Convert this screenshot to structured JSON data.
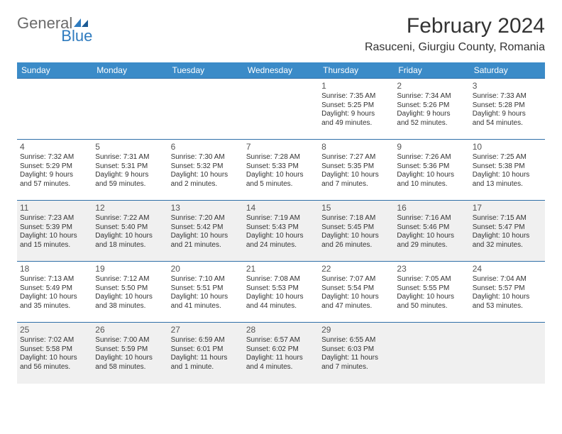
{
  "logo": {
    "general": "General",
    "blue": "Blue"
  },
  "title": "February 2024",
  "location": "Rasuceni, Giurgiu County, Romania",
  "colors": {
    "header_bg": "#3b8bc8",
    "header_text": "#ffffff",
    "border": "#2f6fa8",
    "shade": "#f0f0f0",
    "logo_gray": "#6b6b6b",
    "logo_blue": "#2f7bbf"
  },
  "weekdays": [
    "Sunday",
    "Monday",
    "Tuesday",
    "Wednesday",
    "Thursday",
    "Friday",
    "Saturday"
  ],
  "weeks": [
    [
      null,
      null,
      null,
      null,
      {
        "n": "1",
        "sr": "Sunrise: 7:35 AM",
        "ss": "Sunset: 5:25 PM",
        "dl1": "Daylight: 9 hours",
        "dl2": "and 49 minutes."
      },
      {
        "n": "2",
        "sr": "Sunrise: 7:34 AM",
        "ss": "Sunset: 5:26 PM",
        "dl1": "Daylight: 9 hours",
        "dl2": "and 52 minutes."
      },
      {
        "n": "3",
        "sr": "Sunrise: 7:33 AM",
        "ss": "Sunset: 5:28 PM",
        "dl1": "Daylight: 9 hours",
        "dl2": "and 54 minutes."
      }
    ],
    [
      {
        "n": "4",
        "sr": "Sunrise: 7:32 AM",
        "ss": "Sunset: 5:29 PM",
        "dl1": "Daylight: 9 hours",
        "dl2": "and 57 minutes."
      },
      {
        "n": "5",
        "sr": "Sunrise: 7:31 AM",
        "ss": "Sunset: 5:31 PM",
        "dl1": "Daylight: 9 hours",
        "dl2": "and 59 minutes."
      },
      {
        "n": "6",
        "sr": "Sunrise: 7:30 AM",
        "ss": "Sunset: 5:32 PM",
        "dl1": "Daylight: 10 hours",
        "dl2": "and 2 minutes."
      },
      {
        "n": "7",
        "sr": "Sunrise: 7:28 AM",
        "ss": "Sunset: 5:33 PM",
        "dl1": "Daylight: 10 hours",
        "dl2": "and 5 minutes."
      },
      {
        "n": "8",
        "sr": "Sunrise: 7:27 AM",
        "ss": "Sunset: 5:35 PM",
        "dl1": "Daylight: 10 hours",
        "dl2": "and 7 minutes."
      },
      {
        "n": "9",
        "sr": "Sunrise: 7:26 AM",
        "ss": "Sunset: 5:36 PM",
        "dl1": "Daylight: 10 hours",
        "dl2": "and 10 minutes."
      },
      {
        "n": "10",
        "sr": "Sunrise: 7:25 AM",
        "ss": "Sunset: 5:38 PM",
        "dl1": "Daylight: 10 hours",
        "dl2": "and 13 minutes."
      }
    ],
    [
      {
        "n": "11",
        "sr": "Sunrise: 7:23 AM",
        "ss": "Sunset: 5:39 PM",
        "dl1": "Daylight: 10 hours",
        "dl2": "and 15 minutes.",
        "shade": true
      },
      {
        "n": "12",
        "sr": "Sunrise: 7:22 AM",
        "ss": "Sunset: 5:40 PM",
        "dl1": "Daylight: 10 hours",
        "dl2": "and 18 minutes.",
        "shade": true
      },
      {
        "n": "13",
        "sr": "Sunrise: 7:20 AM",
        "ss": "Sunset: 5:42 PM",
        "dl1": "Daylight: 10 hours",
        "dl2": "and 21 minutes.",
        "shade": true
      },
      {
        "n": "14",
        "sr": "Sunrise: 7:19 AM",
        "ss": "Sunset: 5:43 PM",
        "dl1": "Daylight: 10 hours",
        "dl2": "and 24 minutes.",
        "shade": true
      },
      {
        "n": "15",
        "sr": "Sunrise: 7:18 AM",
        "ss": "Sunset: 5:45 PM",
        "dl1": "Daylight: 10 hours",
        "dl2": "and 26 minutes.",
        "shade": true
      },
      {
        "n": "16",
        "sr": "Sunrise: 7:16 AM",
        "ss": "Sunset: 5:46 PM",
        "dl1": "Daylight: 10 hours",
        "dl2": "and 29 minutes.",
        "shade": true
      },
      {
        "n": "17",
        "sr": "Sunrise: 7:15 AM",
        "ss": "Sunset: 5:47 PM",
        "dl1": "Daylight: 10 hours",
        "dl2": "and 32 minutes.",
        "shade": true
      }
    ],
    [
      {
        "n": "18",
        "sr": "Sunrise: 7:13 AM",
        "ss": "Sunset: 5:49 PM",
        "dl1": "Daylight: 10 hours",
        "dl2": "and 35 minutes."
      },
      {
        "n": "19",
        "sr": "Sunrise: 7:12 AM",
        "ss": "Sunset: 5:50 PM",
        "dl1": "Daylight: 10 hours",
        "dl2": "and 38 minutes."
      },
      {
        "n": "20",
        "sr": "Sunrise: 7:10 AM",
        "ss": "Sunset: 5:51 PM",
        "dl1": "Daylight: 10 hours",
        "dl2": "and 41 minutes."
      },
      {
        "n": "21",
        "sr": "Sunrise: 7:08 AM",
        "ss": "Sunset: 5:53 PM",
        "dl1": "Daylight: 10 hours",
        "dl2": "and 44 minutes."
      },
      {
        "n": "22",
        "sr": "Sunrise: 7:07 AM",
        "ss": "Sunset: 5:54 PM",
        "dl1": "Daylight: 10 hours",
        "dl2": "and 47 minutes."
      },
      {
        "n": "23",
        "sr": "Sunrise: 7:05 AM",
        "ss": "Sunset: 5:55 PM",
        "dl1": "Daylight: 10 hours",
        "dl2": "and 50 minutes."
      },
      {
        "n": "24",
        "sr": "Sunrise: 7:04 AM",
        "ss": "Sunset: 5:57 PM",
        "dl1": "Daylight: 10 hours",
        "dl2": "and 53 minutes."
      }
    ],
    [
      {
        "n": "25",
        "sr": "Sunrise: 7:02 AM",
        "ss": "Sunset: 5:58 PM",
        "dl1": "Daylight: 10 hours",
        "dl2": "and 56 minutes.",
        "shade": true
      },
      {
        "n": "26",
        "sr": "Sunrise: 7:00 AM",
        "ss": "Sunset: 5:59 PM",
        "dl1": "Daylight: 10 hours",
        "dl2": "and 58 minutes.",
        "shade": true
      },
      {
        "n": "27",
        "sr": "Sunrise: 6:59 AM",
        "ss": "Sunset: 6:01 PM",
        "dl1": "Daylight: 11 hours",
        "dl2": "and 1 minute.",
        "shade": true
      },
      {
        "n": "28",
        "sr": "Sunrise: 6:57 AM",
        "ss": "Sunset: 6:02 PM",
        "dl1": "Daylight: 11 hours",
        "dl2": "and 4 minutes.",
        "shade": true
      },
      {
        "n": "29",
        "sr": "Sunrise: 6:55 AM",
        "ss": "Sunset: 6:03 PM",
        "dl1": "Daylight: 11 hours",
        "dl2": "and 7 minutes.",
        "shade": true
      },
      {
        "shade": true
      },
      {
        "shade": true
      }
    ]
  ]
}
